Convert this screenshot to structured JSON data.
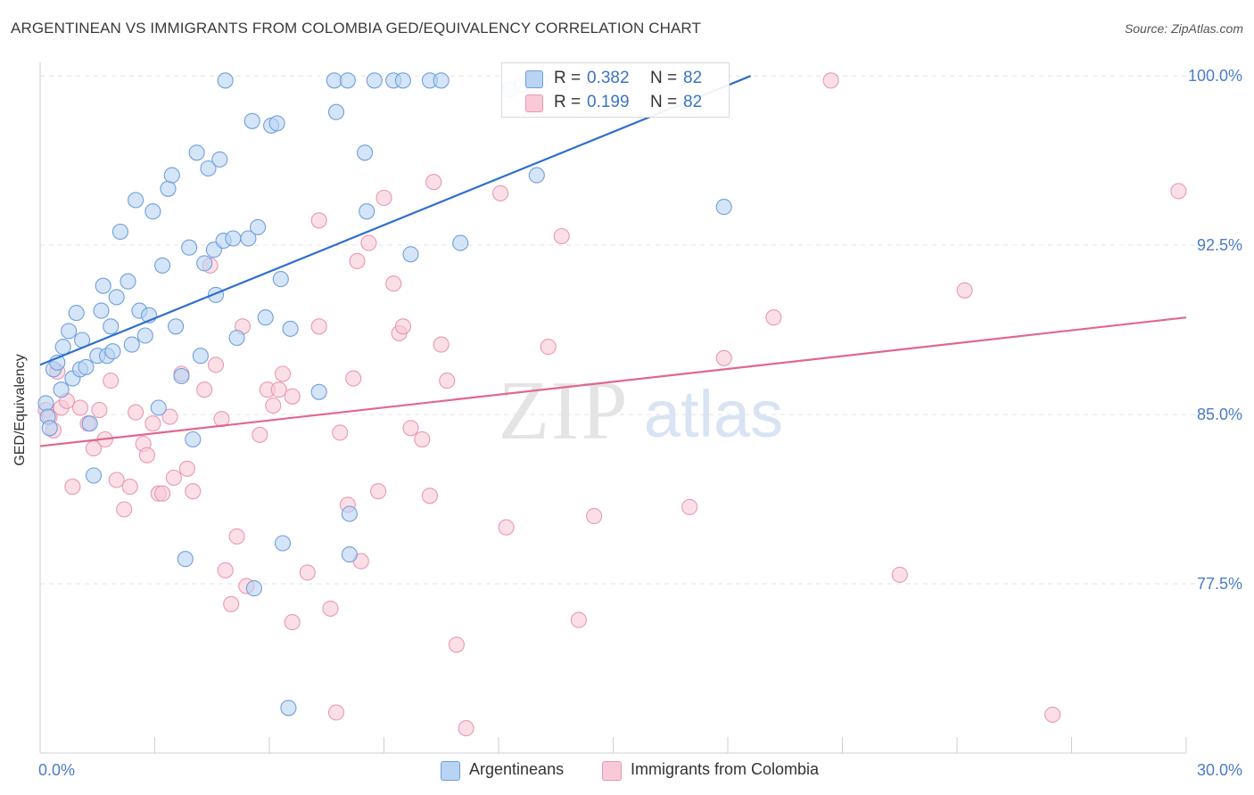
{
  "title": "ARGENTINEAN VS IMMIGRANTS FROM COLOMBIA GED/EQUIVALENCY CORRELATION CHART",
  "source": "Source: ZipAtlas.com",
  "watermark": {
    "zip": "ZIP",
    "atlas": "atlas"
  },
  "colors": {
    "blue_fill": "#b9d3f3",
    "blue_stroke": "#6f9fdc",
    "blue_line": "#2f6fcd",
    "pink_fill": "#f9c9d7",
    "pink_stroke": "#eb97b2",
    "pink_line": "#e0678f",
    "tick_label": "#4a7cc8",
    "grid": "#e3e3e3"
  },
  "legend_top": [
    {
      "r_label": "R =",
      "r_value": "0.382",
      "n_label": "N =",
      "n_value": "82"
    },
    {
      "r_label": "R =",
      "r_value": "0.199",
      "n_label": "N =",
      "n_value": "82"
    }
  ],
  "chart_data": {
    "type": "scatter",
    "title": "ARGENTINEAN VS IMMIGRANTS FROM COLOMBIA GED/EQUIVALENCY CORRELATION CHART",
    "xlabel": "",
    "ylabel": "GED/Equivalency",
    "xlim": [
      0,
      30
    ],
    "ylim": [
      70.0,
      100.6
    ],
    "x_tick_labels": [
      "0.0%",
      "30.0%"
    ],
    "y_ticks": [
      77.5,
      85.0,
      92.5,
      100.0
    ],
    "y_tick_labels": [
      "77.5%",
      "85.0%",
      "92.5%",
      "100.0%"
    ],
    "grid": "horizontal dashed",
    "legend_position": "bottom-center",
    "series": [
      {
        "name": "Argentineans",
        "color": "#6f9fdc",
        "trend": {
          "x": [
            0.0,
            18.6
          ],
          "y": [
            87.2,
            100.0
          ]
        },
        "points": [
          {
            "x": 0.15,
            "y": 85.5
          },
          {
            "x": 0.2,
            "y": 84.9
          },
          {
            "x": 0.25,
            "y": 84.4
          },
          {
            "x": 0.35,
            "y": 87.0
          },
          {
            "x": 0.45,
            "y": 87.3
          },
          {
            "x": 0.55,
            "y": 86.1
          },
          {
            "x": 0.6,
            "y": 88.0
          },
          {
            "x": 0.75,
            "y": 88.7
          },
          {
            "x": 0.85,
            "y": 86.6
          },
          {
            "x": 0.95,
            "y": 89.5
          },
          {
            "x": 1.05,
            "y": 87.0
          },
          {
            "x": 1.1,
            "y": 88.3
          },
          {
            "x": 1.2,
            "y": 87.1
          },
          {
            "x": 1.3,
            "y": 84.6
          },
          {
            "x": 1.4,
            "y": 82.3
          },
          {
            "x": 1.5,
            "y": 87.6
          },
          {
            "x": 1.6,
            "y": 89.6
          },
          {
            "x": 1.65,
            "y": 90.7
          },
          {
            "x": 1.75,
            "y": 87.6
          },
          {
            "x": 1.85,
            "y": 88.9
          },
          {
            "x": 1.9,
            "y": 87.8
          },
          {
            "x": 2.0,
            "y": 90.2
          },
          {
            "x": 2.1,
            "y": 93.1
          },
          {
            "x": 2.3,
            "y": 90.9
          },
          {
            "x": 2.4,
            "y": 88.1
          },
          {
            "x": 2.5,
            "y": 94.5
          },
          {
            "x": 2.6,
            "y": 89.6
          },
          {
            "x": 2.75,
            "y": 88.5
          },
          {
            "x": 2.85,
            "y": 89.4
          },
          {
            "x": 2.95,
            "y": 94.0
          },
          {
            "x": 3.1,
            "y": 85.3
          },
          {
            "x": 3.2,
            "y": 91.6
          },
          {
            "x": 3.35,
            "y": 95.0
          },
          {
            "x": 3.45,
            "y": 95.6
          },
          {
            "x": 3.55,
            "y": 88.9
          },
          {
            "x": 3.7,
            "y": 86.7
          },
          {
            "x": 3.8,
            "y": 78.6
          },
          {
            "x": 3.9,
            "y": 92.4
          },
          {
            "x": 4.0,
            "y": 83.9
          },
          {
            "x": 4.1,
            "y": 96.6
          },
          {
            "x": 4.2,
            "y": 87.6
          },
          {
            "x": 4.3,
            "y": 91.7
          },
          {
            "x": 4.4,
            "y": 95.9
          },
          {
            "x": 4.55,
            "y": 92.3
          },
          {
            "x": 4.6,
            "y": 90.3
          },
          {
            "x": 4.7,
            "y": 96.3
          },
          {
            "x": 4.8,
            "y": 92.7
          },
          {
            "x": 4.85,
            "y": 99.8
          },
          {
            "x": 5.05,
            "y": 92.8
          },
          {
            "x": 5.15,
            "y": 88.4
          },
          {
            "x": 5.45,
            "y": 92.8
          },
          {
            "x": 5.55,
            "y": 98.0
          },
          {
            "x": 5.6,
            "y": 77.3
          },
          {
            "x": 5.7,
            "y": 93.3
          },
          {
            "x": 5.9,
            "y": 89.3
          },
          {
            "x": 6.05,
            "y": 97.8
          },
          {
            "x": 6.2,
            "y": 97.9
          },
          {
            "x": 6.3,
            "y": 91.0
          },
          {
            "x": 6.35,
            "y": 79.3
          },
          {
            "x": 6.55,
            "y": 88.8
          },
          {
            "x": 6.5,
            "y": 72.0
          },
          {
            "x": 7.3,
            "y": 86.0
          },
          {
            "x": 7.7,
            "y": 99.8
          },
          {
            "x": 7.75,
            "y": 98.4
          },
          {
            "x": 8.05,
            "y": 99.8
          },
          {
            "x": 8.1,
            "y": 80.6
          },
          {
            "x": 8.1,
            "y": 78.8
          },
          {
            "x": 8.5,
            "y": 96.6
          },
          {
            "x": 8.55,
            "y": 94.0
          },
          {
            "x": 8.75,
            "y": 99.8
          },
          {
            "x": 9.25,
            "y": 99.8
          },
          {
            "x": 9.5,
            "y": 99.8
          },
          {
            "x": 9.7,
            "y": 92.1
          },
          {
            "x": 10.2,
            "y": 99.8
          },
          {
            "x": 10.5,
            "y": 99.8
          },
          {
            "x": 11.0,
            "y": 92.6
          },
          {
            "x": 12.3,
            "y": 99.4
          },
          {
            "x": 12.6,
            "y": 99.6
          },
          {
            "x": 12.9,
            "y": 99.6
          },
          {
            "x": 13.1,
            "y": 99.8
          },
          {
            "x": 13.0,
            "y": 95.6
          },
          {
            "x": 17.9,
            "y": 94.2
          }
        ]
      },
      {
        "name": "Immigrants from Colombia",
        "color": "#eb97b2",
        "trend": {
          "x": [
            0.0,
            30.0
          ],
          "y": [
            83.6,
            89.3
          ]
        },
        "points": [
          {
            "x": 0.15,
            "y": 85.2
          },
          {
            "x": 0.25,
            "y": 84.9
          },
          {
            "x": 0.35,
            "y": 84.3
          },
          {
            "x": 0.45,
            "y": 86.9
          },
          {
            "x": 0.55,
            "y": 85.3
          },
          {
            "x": 0.7,
            "y": 85.6
          },
          {
            "x": 0.85,
            "y": 81.8
          },
          {
            "x": 1.05,
            "y": 85.3
          },
          {
            "x": 1.25,
            "y": 84.6
          },
          {
            "x": 1.4,
            "y": 83.5
          },
          {
            "x": 1.55,
            "y": 85.2
          },
          {
            "x": 1.7,
            "y": 83.9
          },
          {
            "x": 1.85,
            "y": 86.5
          },
          {
            "x": 2.0,
            "y": 82.1
          },
          {
            "x": 2.2,
            "y": 80.8
          },
          {
            "x": 2.35,
            "y": 81.8
          },
          {
            "x": 2.5,
            "y": 85.1
          },
          {
            "x": 2.7,
            "y": 83.7
          },
          {
            "x": 2.8,
            "y": 83.2
          },
          {
            "x": 2.95,
            "y": 84.6
          },
          {
            "x": 3.1,
            "y": 81.5
          },
          {
            "x": 3.2,
            "y": 81.5
          },
          {
            "x": 3.4,
            "y": 84.9
          },
          {
            "x": 3.5,
            "y": 82.2
          },
          {
            "x": 3.7,
            "y": 86.8
          },
          {
            "x": 3.85,
            "y": 82.6
          },
          {
            "x": 4.0,
            "y": 81.6
          },
          {
            "x": 4.3,
            "y": 86.1
          },
          {
            "x": 4.45,
            "y": 91.6
          },
          {
            "x": 4.6,
            "y": 87.2
          },
          {
            "x": 4.75,
            "y": 84.8
          },
          {
            "x": 4.85,
            "y": 78.1
          },
          {
            "x": 5.0,
            "y": 76.6
          },
          {
            "x": 5.15,
            "y": 79.6
          },
          {
            "x": 5.3,
            "y": 88.9
          },
          {
            "x": 5.4,
            "y": 77.4
          },
          {
            "x": 5.75,
            "y": 84.1
          },
          {
            "x": 5.95,
            "y": 86.1
          },
          {
            "x": 6.1,
            "y": 85.4
          },
          {
            "x": 6.25,
            "y": 86.1
          },
          {
            "x": 6.35,
            "y": 86.8
          },
          {
            "x": 6.6,
            "y": 85.8
          },
          {
            "x": 6.6,
            "y": 75.8
          },
          {
            "x": 7.0,
            "y": 78.0
          },
          {
            "x": 7.3,
            "y": 88.9
          },
          {
            "x": 7.3,
            "y": 93.6
          },
          {
            "x": 7.6,
            "y": 76.4
          },
          {
            "x": 7.75,
            "y": 71.8
          },
          {
            "x": 7.85,
            "y": 84.2
          },
          {
            "x": 8.05,
            "y": 81.0
          },
          {
            "x": 8.2,
            "y": 86.6
          },
          {
            "x": 8.3,
            "y": 91.8
          },
          {
            "x": 8.4,
            "y": 78.5
          },
          {
            "x": 8.6,
            "y": 92.6
          },
          {
            "x": 8.85,
            "y": 81.6
          },
          {
            "x": 9.0,
            "y": 94.6
          },
          {
            "x": 9.25,
            "y": 90.8
          },
          {
            "x": 9.4,
            "y": 88.6
          },
          {
            "x": 9.5,
            "y": 88.9
          },
          {
            "x": 9.7,
            "y": 84.4
          },
          {
            "x": 10.0,
            "y": 83.9
          },
          {
            "x": 10.2,
            "y": 81.4
          },
          {
            "x": 10.3,
            "y": 95.3
          },
          {
            "x": 10.5,
            "y": 88.1
          },
          {
            "x": 10.65,
            "y": 86.5
          },
          {
            "x": 10.9,
            "y": 74.8
          },
          {
            "x": 11.15,
            "y": 71.1
          },
          {
            "x": 12.05,
            "y": 94.8
          },
          {
            "x": 12.2,
            "y": 80.0
          },
          {
            "x": 13.3,
            "y": 88.0
          },
          {
            "x": 13.65,
            "y": 92.9
          },
          {
            "x": 14.1,
            "y": 75.9
          },
          {
            "x": 14.5,
            "y": 80.5
          },
          {
            "x": 14.5,
            "y": 99.7
          },
          {
            "x": 17.0,
            "y": 80.9
          },
          {
            "x": 17.9,
            "y": 87.5
          },
          {
            "x": 19.2,
            "y": 89.3
          },
          {
            "x": 20.7,
            "y": 99.8
          },
          {
            "x": 22.5,
            "y": 77.9
          },
          {
            "x": 24.2,
            "y": 90.5
          },
          {
            "x": 26.5,
            "y": 71.7
          },
          {
            "x": 29.8,
            "y": 94.9
          }
        ]
      }
    ]
  }
}
